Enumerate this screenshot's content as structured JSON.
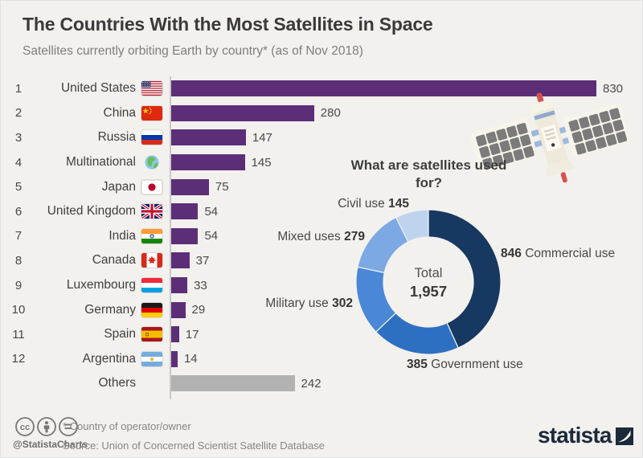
{
  "header": {
    "title": "The Countries With the Most Satellites in Space",
    "subtitle": "Satellites currently orbiting Earth by country* (as of Nov 2018)"
  },
  "chart_data": [
    {
      "type": "bar",
      "orientation": "horizontal",
      "title": "Satellites currently orbiting Earth by country (as of Nov 2018)",
      "max_value": 830,
      "bar_color": "#5d2e78",
      "others_bar_color": "#b2b2b2",
      "rows": [
        {
          "rank": "1",
          "country": "United States",
          "flag": "us",
          "value": 830
        },
        {
          "rank": "2",
          "country": "China",
          "flag": "cn",
          "value": 280
        },
        {
          "rank": "3",
          "country": "Russia",
          "flag": "ru",
          "value": 147
        },
        {
          "rank": "4",
          "country": "Multinational",
          "flag": "globe",
          "value": 145
        },
        {
          "rank": "5",
          "country": "Japan",
          "flag": "jp",
          "value": 75
        },
        {
          "rank": "6",
          "country": "United Kingdom",
          "flag": "gb",
          "value": 54
        },
        {
          "rank": "7",
          "country": "India",
          "flag": "in",
          "value": 54
        },
        {
          "rank": "8",
          "country": "Canada",
          "flag": "ca",
          "value": 37
        },
        {
          "rank": "9",
          "country": "Luxembourg",
          "flag": "lu",
          "value": 33
        },
        {
          "rank": "10",
          "country": "Germany",
          "flag": "de",
          "value": 29
        },
        {
          "rank": "11",
          "country": "Spain",
          "flag": "es",
          "value": 17
        },
        {
          "rank": "12",
          "country": "Argentina",
          "flag": "ar",
          "value": 14
        },
        {
          "rank": "",
          "country": "Others",
          "flag": null,
          "value": 242,
          "color": "#b2b2b2"
        }
      ]
    },
    {
      "type": "pie",
      "subtype": "donut",
      "title": "What are satellites used for?",
      "total_label": "Total",
      "total_value": "1,957",
      "segments": [
        {
          "label": "Commercial use",
          "value": 846,
          "color": "#173860"
        },
        {
          "label": "Government use",
          "value": 385,
          "color": "#2d70c2"
        },
        {
          "label": "Military use",
          "value": 302,
          "color": "#4a87d6"
        },
        {
          "label": "Mixed uses",
          "value": 279,
          "color": "#7ca9e3"
        },
        {
          "label": "Civil use",
          "value": 145,
          "color": "#bed3ee"
        }
      ]
    }
  ],
  "footer": {
    "handle": "@StatistaCharts",
    "footnote": "* Country of operator/owner",
    "source": "Source: Union of Concerned Scientist Satellite Database",
    "brand": "statista",
    "license_icons": [
      "cc-icon",
      "attribution-person-icon",
      "no-derivatives-icon"
    ]
  },
  "colors": {
    "background": "#f2f1ee",
    "bar_purple": "#5d2e78",
    "others_gray": "#b2b2b2",
    "brand_navy": "#1b2a3b",
    "title_text": "#3a3a3a",
    "subtitle_text": "#7e7e7e"
  }
}
